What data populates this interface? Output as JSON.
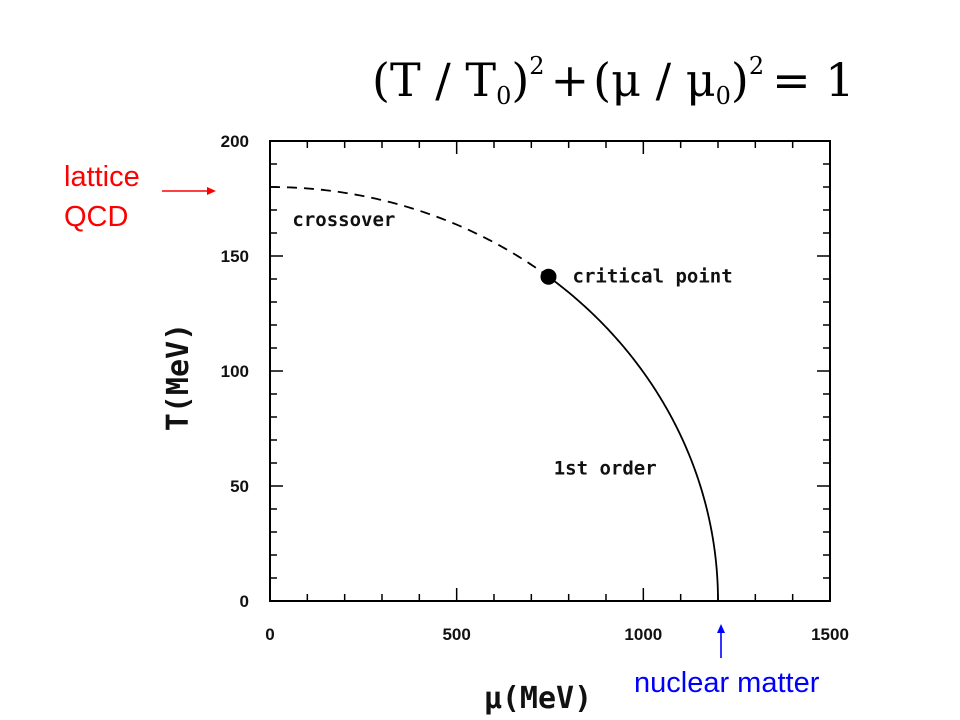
{
  "chart_data": {
    "type": "line",
    "title": "",
    "equation": {
      "lhs_1": "(T / T",
      "sub_1": "0",
      "rp_1": ")",
      "exp_1": "2",
      "plus": "+",
      "lhs_2": "(μ / μ",
      "sub_2": "0",
      "rp_2": ")",
      "exp_2": "2",
      "rhs": "= 1"
    },
    "xlabel": "μ(MeV)",
    "ylabel": "T(MeV)",
    "xlim": [
      0,
      1500
    ],
    "ylim": [
      0,
      200
    ],
    "x_ticks": [
      0,
      500,
      1000,
      1500
    ],
    "y_ticks": [
      0,
      50,
      100,
      150,
      200
    ],
    "x_tick_labels": [
      "0",
      "500",
      "1000",
      "1500"
    ],
    "y_tick_labels": [
      "0",
      "50",
      "100",
      "150",
      "200"
    ],
    "grid": false,
    "ellipse": {
      "T0": 180,
      "mu0": 1200
    },
    "series": [
      {
        "name": "crossover",
        "style": "dashed",
        "mu_range": [
          0,
          746
        ]
      },
      {
        "name": "1st order",
        "style": "solid",
        "mu_range": [
          746,
          1200
        ]
      }
    ],
    "critical_point": {
      "x": 746,
      "y": 141,
      "label": "critical point"
    },
    "annotations": [
      {
        "text": "crossover",
        "x": 60,
        "y": 163
      },
      {
        "text": "1st order",
        "x": 760,
        "y": 55
      }
    ],
    "side_notes": {
      "lattice_line1": "lattice",
      "lattice_line2": "QCD",
      "nuclear": "nuclear matter"
    },
    "colors": {
      "axis": "#000000",
      "lattice": "#ff0000",
      "nuclear": "#0000ff"
    }
  }
}
